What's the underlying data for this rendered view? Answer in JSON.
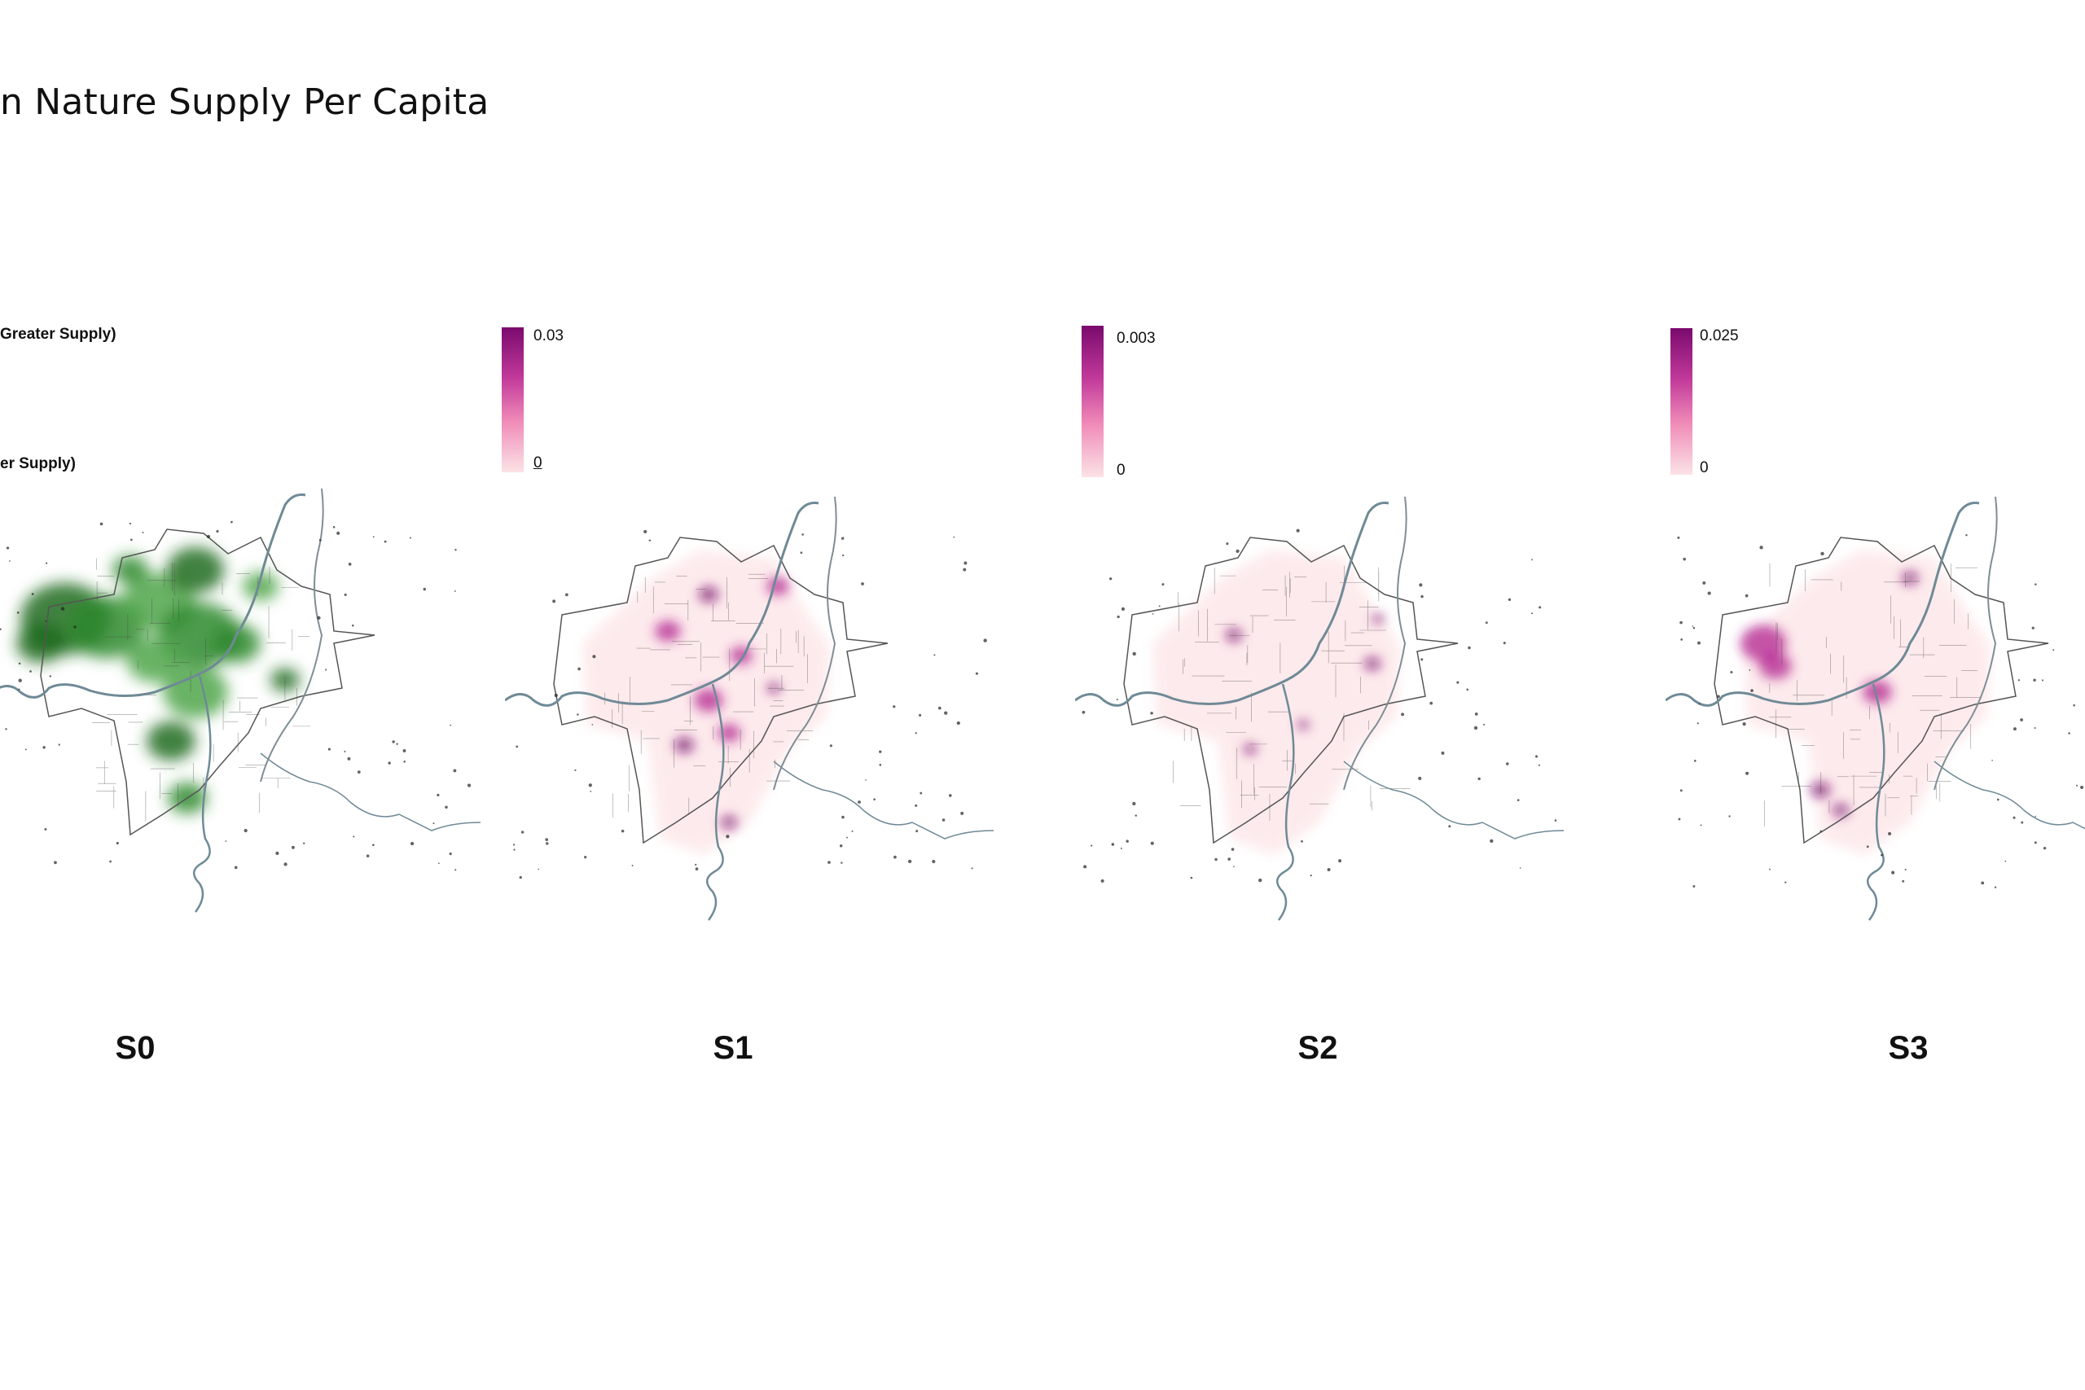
{
  "title": "n Nature Supply Per Capita",
  "s0_legend": {
    "high_label": "Greater Supply)",
    "low_label": "er Supply)"
  },
  "colors": {
    "green_dark": "#1e6b1e",
    "green_light": "#8ccf7a",
    "magenta_dark": "#7a0a6e",
    "magenta_light": "#fbe3e6",
    "boundary": "#555555",
    "river": "#6f8a96"
  },
  "panels": [
    {
      "id": "S0",
      "label": "S0",
      "scheme": "green",
      "legend_max": "",
      "legend_min": ""
    },
    {
      "id": "S1",
      "label": "S1",
      "scheme": "magenta",
      "legend_max": "0.03",
      "legend_min": "0"
    },
    {
      "id": "S2",
      "label": "S2",
      "scheme": "magenta",
      "legend_max": "0.003",
      "legend_min": "0"
    },
    {
      "id": "S3",
      "label": "S3",
      "scheme": "magenta",
      "legend_max": "0.025",
      "legend_min": "0"
    }
  ]
}
